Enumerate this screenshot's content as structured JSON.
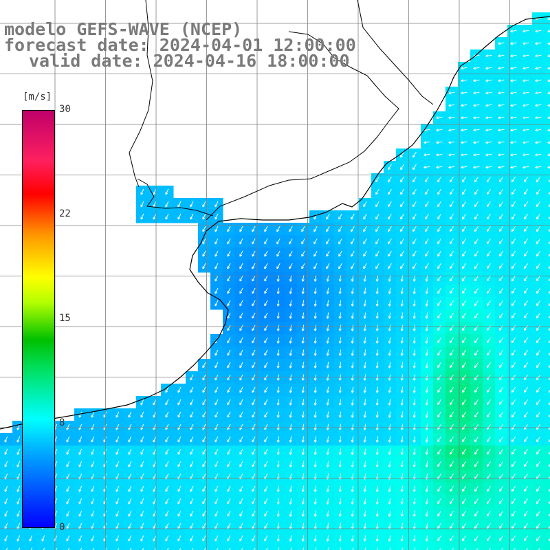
{
  "title": {
    "line1": "modelo GEFS-WAVE (NCEP)",
    "line2": "forecast date: 2024-04-01 12:00:00",
    "line3": "valid date: 2024-04-16 18:00:00"
  },
  "colorbar": {
    "unit": "[m/s]",
    "ticks": [
      "30",
      "22",
      "15",
      "8",
      "0"
    ],
    "range": [
      0,
      30
    ]
  },
  "colors": {
    "land": "#ffffff",
    "coast": "#000000",
    "grid": "#7f7f7f",
    "arrow": "#ffffff",
    "title": "#7a7a7a"
  }
}
